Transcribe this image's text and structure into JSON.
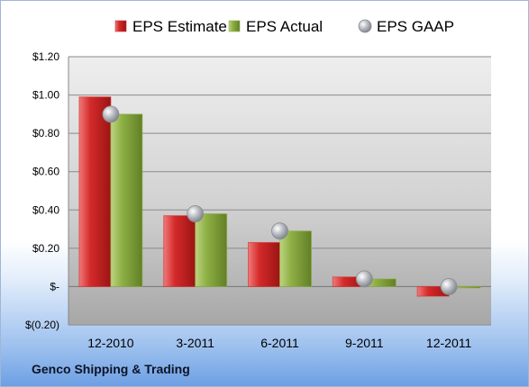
{
  "company_name": "Genco Shipping & Trading",
  "colors": {
    "estimate": "#d42a2a",
    "actual": "#8fb045",
    "gaap": "#a9acb2"
  },
  "chart_data": {
    "type": "bar",
    "categories": [
      "12-2010",
      "3-2011",
      "6-2011",
      "9-2011",
      "12-2011"
    ],
    "series": [
      {
        "name": "EPS Estimate",
        "kind": "bar",
        "values": [
          0.99,
          0.37,
          0.23,
          0.05,
          -0.05
        ]
      },
      {
        "name": "EPS Actual",
        "kind": "bar",
        "values": [
          0.9,
          0.38,
          0.29,
          0.04,
          0.0
        ]
      },
      {
        "name": "EPS GAAP",
        "kind": "marker",
        "values": [
          0.9,
          0.38,
          0.29,
          0.04,
          0.0
        ]
      }
    ],
    "ylim": [
      -0.2,
      1.2
    ],
    "yticks": [
      1.2,
      1.0,
      0.8,
      0.6,
      0.4,
      0.2,
      0.0,
      -0.2
    ],
    "ytick_labels": [
      "$1.20",
      "$1.00",
      "$0.80",
      "$0.60",
      "$0.40",
      "$0.20",
      "$-",
      "$(0.20)"
    ],
    "legend_position": "top",
    "grid": true
  }
}
